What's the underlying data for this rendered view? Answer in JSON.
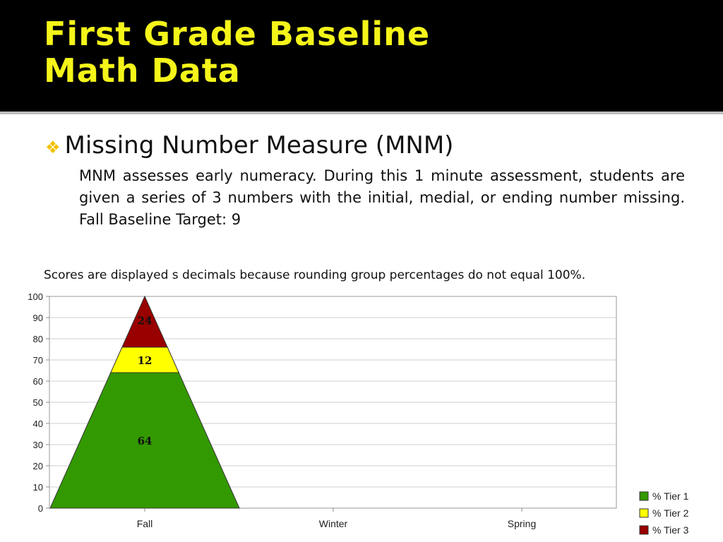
{
  "slide": {
    "title_line1": "First Grade Baseline",
    "title_line2": "Math Data",
    "bullet_heading": "Missing Number Measure (MNM)",
    "bullet_body": "MNM assesses early numeracy.  During  this  1 minute assessment, students are given a series of 3 numbers with the initial, medial, or ending number missing. Fall Baseline Target: 9",
    "note": "Scores are displayed s decimals because rounding group percentages do not equal 100%.",
    "icons": {
      "bullet": "diamond-bullet-icon"
    }
  },
  "colors": {
    "title": "#f5f51a",
    "tier1": "#339900",
    "tier2": "#ffff00",
    "tier3": "#990000"
  },
  "chart_data": {
    "type": "area",
    "stacked": true,
    "shape": "pyramid",
    "categories": [
      "Fall",
      "Winter",
      "Spring"
    ],
    "series": [
      {
        "name": "% Tier 1",
        "values": [
          64,
          null,
          null
        ]
      },
      {
        "name": "% Tier 2",
        "values": [
          12,
          null,
          null
        ]
      },
      {
        "name": "% Tier 3",
        "values": [
          24,
          null,
          null
        ]
      }
    ],
    "ylim": [
      0,
      100
    ],
    "yticks": [
      0,
      10,
      20,
      30,
      40,
      50,
      60,
      70,
      80,
      90,
      100
    ],
    "grid": true,
    "legend": "right"
  }
}
